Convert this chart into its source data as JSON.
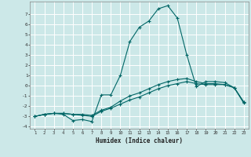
{
  "xlabel": "Humidex (Indice chaleur)",
  "bg_color": "#cce8e8",
  "grid_color": "#b0d8d8",
  "line_color": "#006666",
  "xlim": [
    0.5,
    23.5
  ],
  "ylim": [
    -4.2,
    8.2
  ],
  "yticks": [
    -4,
    -3,
    -2,
    -1,
    0,
    1,
    2,
    3,
    4,
    5,
    6,
    7
  ],
  "xticks": [
    1,
    2,
    3,
    4,
    5,
    6,
    7,
    8,
    9,
    10,
    11,
    12,
    13,
    14,
    15,
    16,
    17,
    18,
    19,
    20,
    21,
    22,
    23
  ],
  "line1_x": [
    1,
    2,
    3,
    4,
    5,
    6,
    7,
    8,
    9,
    10,
    11,
    12,
    13,
    14,
    15,
    16,
    17,
    18,
    19,
    20,
    21,
    22,
    23
  ],
  "line1_y": [
    -3.0,
    -2.8,
    -2.7,
    -2.8,
    -3.4,
    -3.3,
    -3.5,
    -0.9,
    -0.9,
    1.0,
    4.3,
    5.7,
    6.3,
    7.5,
    7.8,
    6.6,
    3.0,
    -0.1,
    0.4,
    0.4,
    0.3,
    -0.2,
    -1.7
  ],
  "line2_x": [
    1,
    2,
    3,
    4,
    5,
    6,
    7,
    8,
    9,
    10,
    11,
    12,
    13,
    14,
    15,
    16,
    17,
    18,
    19,
    20,
    21,
    22,
    23
  ],
  "line2_y": [
    -3.0,
    -2.8,
    -2.7,
    -2.7,
    -2.8,
    -2.9,
    -3.0,
    -2.5,
    -2.2,
    -1.8,
    -1.4,
    -1.1,
    -0.7,
    -0.3,
    0.0,
    0.2,
    0.4,
    0.2,
    0.1,
    0.1,
    0.1,
    -0.2,
    -1.6
  ],
  "line3_x": [
    1,
    2,
    3,
    4,
    5,
    6,
    7,
    8,
    9,
    10,
    11,
    12,
    13,
    14,
    15,
    16,
    17,
    18,
    19,
    20,
    21,
    22,
    23
  ],
  "line3_y": [
    -3.0,
    -2.8,
    -2.7,
    -2.7,
    -2.8,
    -2.8,
    -2.9,
    -2.4,
    -2.1,
    -1.5,
    -1.0,
    -0.7,
    -0.3,
    0.1,
    0.4,
    0.6,
    0.7,
    0.4,
    0.2,
    0.2,
    0.1,
    -0.2,
    -1.6
  ]
}
